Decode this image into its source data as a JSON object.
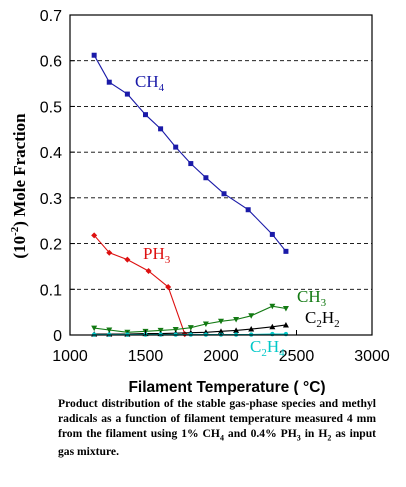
{
  "chart_data": {
    "type": "line",
    "xlabel": "Filament Temperature ( °C)",
    "ylabel": "(10",
    "ylabel_exp": "-2",
    "ylabel_rest": ") Mole Fraction",
    "xlim": [
      1000,
      3000
    ],
    "ylim": [
      0,
      0.7
    ],
    "xticks": [
      "1000",
      "1500",
      "2000",
      "2500",
      "3000"
    ],
    "yticks": [
      "0",
      "0.1",
      "0.2",
      "0.3",
      "0.4",
      "0.5",
      "0.6",
      "0.7"
    ],
    "grid": "horizontal dashed",
    "series": [
      {
        "name": "CH4",
        "label_main": "CH",
        "label_sub": "4",
        "color": "#1a1aa8",
        "marker": "square",
        "x": [
          1160,
          1260,
          1380,
          1500,
          1600,
          1700,
          1800,
          1900,
          2020,
          2180,
          2340,
          2430
        ],
        "y": [
          0.612,
          0.553,
          0.527,
          0.482,
          0.451,
          0.411,
          0.375,
          0.344,
          0.309,
          0.274,
          0.22,
          0.183
        ]
      },
      {
        "name": "PH3",
        "label_main": "PH",
        "label_sub": "3",
        "color": "#dd1010",
        "marker": "diamond",
        "x": [
          1160,
          1260,
          1380,
          1520,
          1650,
          1760
        ],
        "y": [
          0.218,
          0.18,
          0.165,
          0.14,
          0.105,
          0.002
        ]
      },
      {
        "name": "CH3",
        "label_main": "CH",
        "label_sub": "3",
        "color": "#137a13",
        "marker": "triangle-down",
        "x": [
          1160,
          1260,
          1380,
          1500,
          1600,
          1700,
          1800,
          1900,
          2000,
          2100,
          2200,
          2340,
          2430
        ],
        "y": [
          0.015,
          0.011,
          0.006,
          0.008,
          0.01,
          0.012,
          0.016,
          0.024,
          0.03,
          0.034,
          0.042,
          0.063,
          0.058
        ]
      },
      {
        "name": "C2H2",
        "label_main": "C",
        "label_sub": "2",
        "label_main2": "H",
        "label_sub2": "2",
        "color": "#000000",
        "marker": "triangle-up",
        "x": [
          1160,
          1260,
          1380,
          1500,
          1600,
          1700,
          1800,
          1900,
          2000,
          2100,
          2200,
          2340,
          2430
        ],
        "y": [
          0.002,
          0.002,
          0.002,
          0.003,
          0.003,
          0.004,
          0.005,
          0.006,
          0.008,
          0.01,
          0.013,
          0.018,
          0.022
        ]
      },
      {
        "name": "C2H4",
        "label_main": "C",
        "label_sub": "2",
        "label_main2": "H",
        "label_sub2": "4",
        "color": "#00c8c8",
        "marker": "circle",
        "x": [
          1160,
          1260,
          1380,
          1500,
          1600,
          1700,
          1800,
          1900,
          2000,
          2100,
          2200,
          2340,
          2430
        ],
        "y": [
          0.001,
          0.001,
          0.001,
          0.001,
          0.001,
          0.001,
          0.001,
          0.001,
          0.001,
          0.001,
          0.001,
          0.002,
          0.002
        ]
      }
    ]
  },
  "caption": {
    "part1": "Product distribution of the stable gas-phase species and methyl radicals as a function of filament temperature measured 4 mm from the filament using 1% CH",
    "sub1": "4",
    "part2": " and 0.4% PH",
    "sub2": "3",
    "part3": " in H",
    "sub3": "2",
    "part4": " as input gas mixture."
  }
}
